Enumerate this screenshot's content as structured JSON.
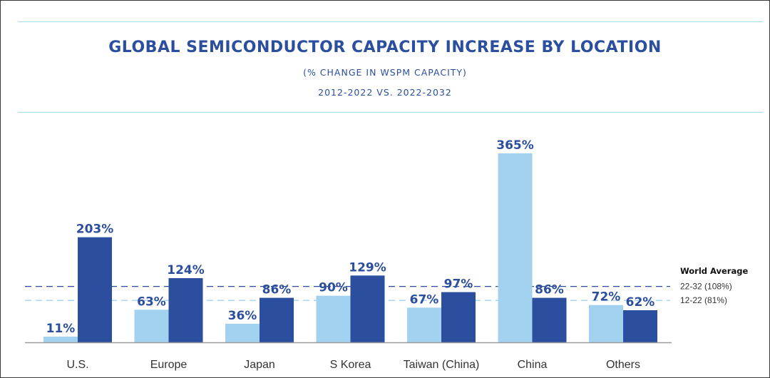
{
  "chart_data": {
    "type": "bar",
    "title": "GLOBAL SEMICONDUCTOR CAPACITY INCREASE BY LOCATION",
    "subtitle_1": "(% CHANGE IN WSPM CAPACITY)",
    "subtitle_2": "2012-2022 VS. 2022-2032",
    "categories": [
      "U.S.",
      "Europe",
      "Japan",
      "S Korea",
      "Taiwan (China)",
      "China",
      "Others"
    ],
    "series": [
      {
        "values": [
          11,
          63,
          36,
          90,
          67,
          365,
          72
        ],
        "labels": [
          "11%",
          "63%",
          "36%",
          "90%",
          "67%",
          "365%",
          "72%"
        ],
        "color": "#a3d2f0"
      },
      {
        "values": [
          203,
          124,
          86,
          129,
          97,
          86,
          62
        ],
        "labels": [
          "203%",
          "124%",
          "86%",
          "129%",
          "97%",
          "86%",
          "62%"
        ],
        "color": "#2b4e9e"
      }
    ],
    "ylim": [
      0,
      365
    ],
    "grid": false,
    "reference_lines": [
      {
        "label": "22-32 (108%)",
        "value": 108,
        "color": "#2b4e9e"
      },
      {
        "label": "12-22 (81%)",
        "value": 81,
        "color": "#a3d2f0"
      }
    ],
    "reference_title": "World Average",
    "colors": {
      "label_text": "#2b4e9e",
      "axis": "#999999",
      "category_text": "#333333"
    }
  }
}
